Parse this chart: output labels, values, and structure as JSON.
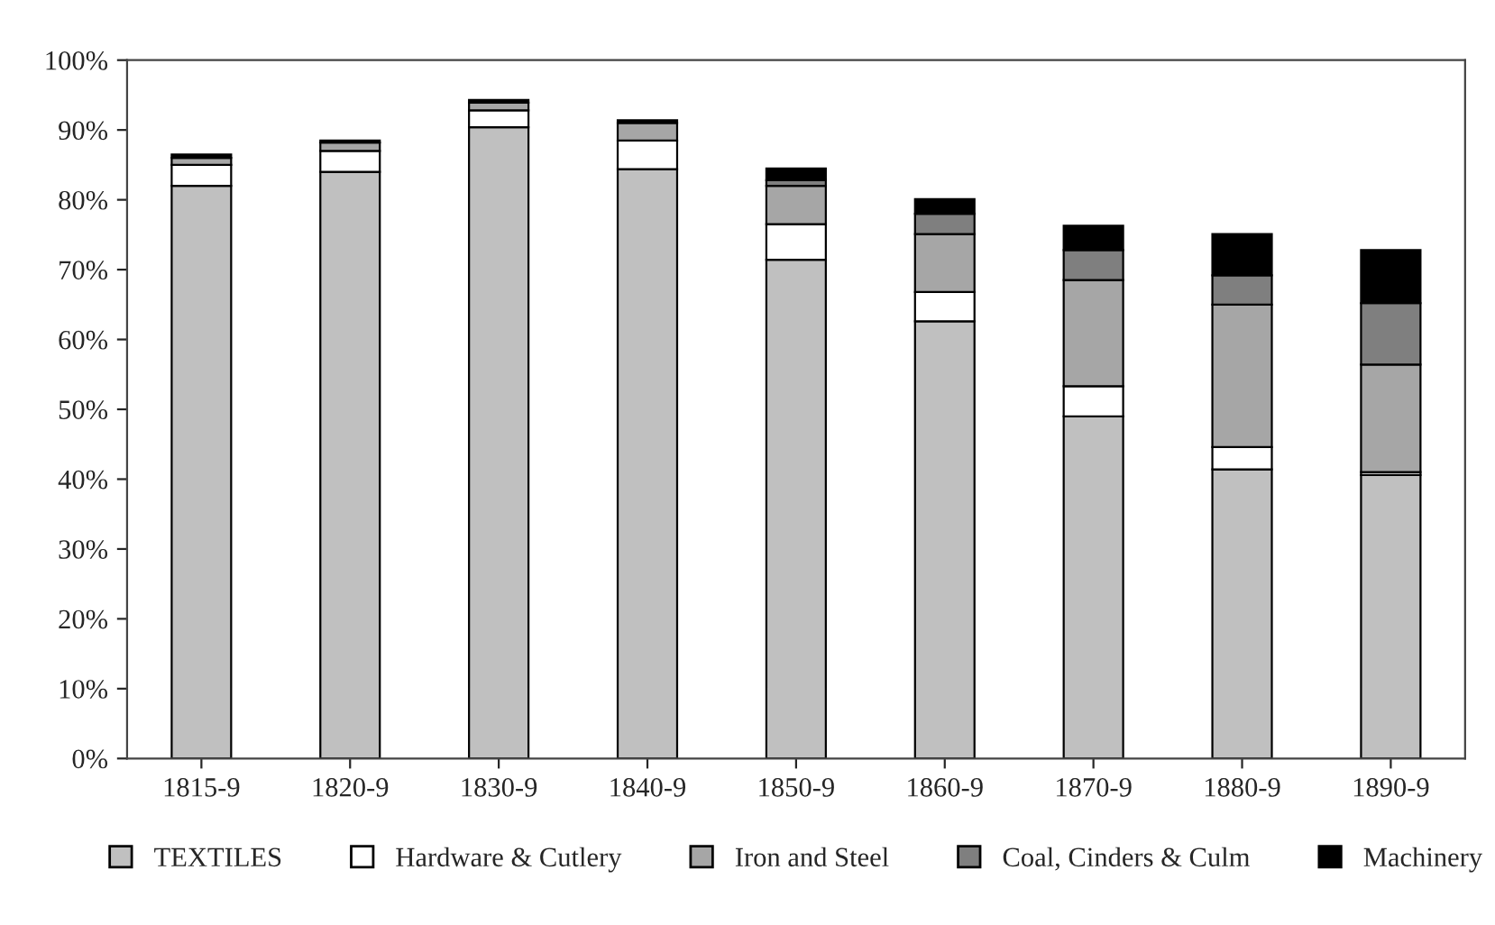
{
  "chart_data": {
    "type": "bar",
    "stacked": true,
    "categories": [
      "1815-9",
      "1820-9",
      "1830-9",
      "1840-9",
      "1850-9",
      "1860-9",
      "1870-9",
      "1880-9",
      "1890-9"
    ],
    "series": [
      {
        "name": "TEXTILES",
        "color": "#c0c0c0",
        "values": [
          82,
          84,
          90.4,
          84.4,
          71.4,
          62.6,
          49,
          41.4,
          40.6
        ]
      },
      {
        "name": "Hardware & Cutlery",
        "color": "#ffffff",
        "values": [
          3,
          3,
          2.4,
          4.1,
          5.1,
          4.2,
          4.3,
          3.2,
          0.4
        ]
      },
      {
        "name": "Iron and Steel",
        "color": "#a6a6a6",
        "values": [
          1,
          1.2,
          1.1,
          2.5,
          5.5,
          8.3,
          15.2,
          20.4,
          15.4
        ]
      },
      {
        "name": "Coal, Cinders & Culm",
        "color": "#7f7f7f",
        "values": [
          null,
          null,
          null,
          null,
          0.8,
          2.9,
          4.3,
          4.2,
          8.8
        ]
      },
      {
        "name": "Machinery",
        "color": "#000000",
        "values": [
          0.5,
          0.3,
          0.4,
          0.4,
          1.7,
          2.1,
          3.5,
          5.9,
          7.6
        ]
      }
    ],
    "ylim": [
      0,
      100
    ],
    "yticks": [
      {
        "value": 0,
        "label": "0%"
      },
      {
        "value": 10,
        "label": "10%"
      },
      {
        "value": 20,
        "label": "20%"
      },
      {
        "value": 30,
        "label": "30%"
      },
      {
        "value": 40,
        "label": "40%"
      },
      {
        "value": 50,
        "label": "50%"
      },
      {
        "value": 60,
        "label": "60%"
      },
      {
        "value": 70,
        "label": "70%"
      },
      {
        "value": 80,
        "label": "80%"
      },
      {
        "value": 90,
        "label": "90%"
      },
      {
        "value": 100,
        "label": "100%"
      }
    ],
    "grid": false,
    "legend": "bottom"
  }
}
